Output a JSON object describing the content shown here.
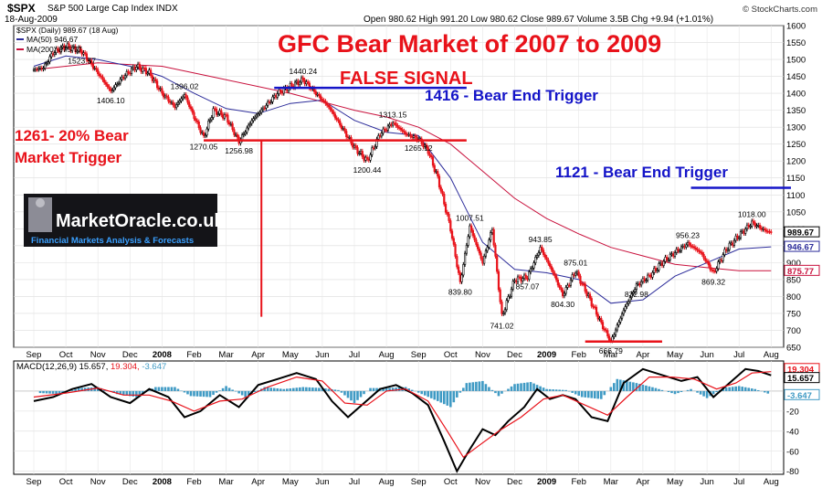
{
  "header": {
    "symbol": "$SPX",
    "name": "S&P 500 Large Cap Index INDX",
    "date": "18-Aug-2009",
    "ohlc": "Open 980.62  High 991.20  Low 980.62  Close 989.67  Volume 3.5B  Chg +9.94 (+1.01%)",
    "watermark": "© StockCharts.com"
  },
  "legend": {
    "main": "$SPX (Daily) 989.67 (18 Aug)",
    "ma50": "MA(50) 946.67",
    "ma200": "MA(200) 875.77",
    "macd_label": "MACD(12,26,9)",
    "macd_v1": "15.657,",
    "macd_v2": "19.304,",
    "macd_v3": "-3.647"
  },
  "annotations": {
    "title": "GFC  Bear Market of 2007 to 2009",
    "false_signal": "FALSE SIGNAL",
    "trigger_1416": "1416 - Bear End Trigger",
    "trigger_1121": "1121 - Bear End Trigger",
    "trigger_1261_a": "1261- 20% Bear",
    "trigger_1261_b": "Market Trigger"
  },
  "logo": {
    "name": "MarketOracle.co.uk",
    "tagline": "Financial Markets Analysis & Forecasts"
  },
  "colors": {
    "price": "#000000",
    "down": "#e8121a",
    "ma50": "#2c2c9a",
    "ma200": "#c8103c",
    "signal": "#e8121a",
    "hist": "#3f9ac4",
    "annotation_red": "#e8121a",
    "annotation_blue": "#1414c8"
  },
  "chart_data": [
    {
      "type": "line",
      "title": "$SPX (Daily)",
      "ylim": [
        650,
        1600
      ],
      "y_ticks": [
        650,
        700,
        750,
        800,
        850,
        900,
        950,
        1000,
        1050,
        1100,
        1150,
        1200,
        1250,
        1300,
        1350,
        1400,
        1450,
        1500,
        1550,
        1600
      ],
      "x_ticks": [
        "Sep",
        "Oct",
        "Nov",
        "Dec",
        "2008",
        "Feb",
        "Mar",
        "Apr",
        "May",
        "Jun",
        "Jul",
        "Aug",
        "Sep",
        "Oct",
        "Nov",
        "Dec",
        "2009",
        "Feb",
        "Mar",
        "Apr",
        "May",
        "Jun",
        "Jul",
        "Aug"
      ],
      "price_path": [
        [
          0,
          1470
        ],
        [
          0.3,
          1475
        ],
        [
          0.6,
          1520
        ],
        [
          1.0,
          1539
        ],
        [
          1.5,
          1523.57
        ],
        [
          2.0,
          1460
        ],
        [
          2.4,
          1406.1
        ],
        [
          2.8,
          1450
        ],
        [
          3.2,
          1480
        ],
        [
          3.6,
          1460
        ],
        [
          4.0,
          1400
        ],
        [
          4.4,
          1360
        ],
        [
          4.7,
          1396.02
        ],
        [
          5.0,
          1330
        ],
        [
          5.3,
          1270.05
        ],
        [
          5.6,
          1350
        ],
        [
          6.0,
          1330
        ],
        [
          6.4,
          1256.98
        ],
        [
          6.8,
          1320
        ],
        [
          7.2,
          1360
        ],
        [
          7.6,
          1400
        ],
        [
          8.0,
          1420
        ],
        [
          8.4,
          1440.24
        ],
        [
          8.8,
          1400
        ],
        [
          9.2,
          1360
        ],
        [
          9.6,
          1300
        ],
        [
          10.0,
          1240
        ],
        [
          10.4,
          1200.44
        ],
        [
          10.8,
          1280
        ],
        [
          11.2,
          1313.15
        ],
        [
          11.6,
          1280
        ],
        [
          12.0,
          1265.12
        ],
        [
          12.3,
          1230
        ],
        [
          12.6,
          1150
        ],
        [
          13.0,
          1000
        ],
        [
          13.3,
          839.8
        ],
        [
          13.6,
          1007.51
        ],
        [
          14.0,
          900
        ],
        [
          14.3,
          1000
        ],
        [
          14.6,
          741.02
        ],
        [
          15.0,
          850
        ],
        [
          15.4,
          857.07
        ],
        [
          15.8,
          943.85
        ],
        [
          16.2,
          870
        ],
        [
          16.5,
          804.3
        ],
        [
          16.9,
          875.01
        ],
        [
          17.3,
          800
        ],
        [
          17.7,
          720
        ],
        [
          18.0,
          666.79
        ],
        [
          18.4,
          760
        ],
        [
          18.8,
          832.98
        ],
        [
          19.2,
          860
        ],
        [
          19.6,
          900
        ],
        [
          20.0,
          930
        ],
        [
          20.4,
          956.23
        ],
        [
          20.8,
          930
        ],
        [
          21.2,
          869.32
        ],
        [
          21.6,
          940
        ],
        [
          22.0,
          980
        ],
        [
          22.4,
          1018.0
        ],
        [
          22.8,
          995
        ],
        [
          23.0,
          989.67
        ]
      ],
      "series": [
        {
          "name": "MA(50)",
          "values": [
            [
              0,
              1480
            ],
            [
              1,
              1510
            ],
            [
              2,
              1500
            ],
            [
              3,
              1480
            ],
            [
              4,
              1450
            ],
            [
              5,
              1400
            ],
            [
              6,
              1355
            ],
            [
              7,
              1340
            ],
            [
              8,
              1370
            ],
            [
              9,
              1380
            ],
            [
              10,
              1320
            ],
            [
              11,
              1285
            ],
            [
              12,
              1275
            ],
            [
              13,
              1150
            ],
            [
              14,
              960
            ],
            [
              15,
              880
            ],
            [
              16,
              870
            ],
            [
              17,
              850
            ],
            [
              18,
              780
            ],
            [
              19,
              790
            ],
            [
              20,
              860
            ],
            [
              21,
              900
            ],
            [
              22,
              940
            ],
            [
              23,
              946.67
            ]
          ]
        },
        {
          "name": "MA(200)",
          "values": [
            [
              0,
              1470
            ],
            [
              2,
              1490
            ],
            [
              4,
              1480
            ],
            [
              6,
              1440
            ],
            [
              8,
              1400
            ],
            [
              10,
              1350
            ],
            [
              11,
              1330
            ],
            [
              12,
              1300
            ],
            [
              13,
              1250
            ],
            [
              14,
              1170
            ],
            [
              15,
              1090
            ],
            [
              16,
              1030
            ],
            [
              17,
              985
            ],
            [
              18,
              945
            ],
            [
              19,
              920
            ],
            [
              20,
              895
            ],
            [
              21,
              885
            ],
            [
              22,
              876
            ],
            [
              23,
              875.77
            ]
          ]
        }
      ],
      "price_labels": [
        {
          "text": "1523.57",
          "x": 1.5,
          "y": 1523.57
        },
        {
          "text": "1406.10",
          "x": 2.4,
          "y": 1406.1
        },
        {
          "text": "1396.02",
          "x": 4.7,
          "y": 1396.02
        },
        {
          "text": "1270.05",
          "x": 5.3,
          "y": 1270.05
        },
        {
          "text": "1256.98",
          "x": 6.4,
          "y": 1256.98
        },
        {
          "text": "1440.24",
          "x": 8.4,
          "y": 1440.24
        },
        {
          "text": "1200.44",
          "x": 10.4,
          "y": 1200.44
        },
        {
          "text": "1313.15",
          "x": 11.2,
          "y": 1313.15
        },
        {
          "text": "1265.12",
          "x": 12.0,
          "y": 1265.12
        },
        {
          "text": "839.80",
          "x": 13.3,
          "y": 839.8
        },
        {
          "text": "1007.51",
          "x": 13.6,
          "y": 1007.51
        },
        {
          "text": "741.02",
          "x": 14.6,
          "y": 741.02
        },
        {
          "text": "857.07",
          "x": 15.4,
          "y": 857.07
        },
        {
          "text": "943.85",
          "x": 15.8,
          "y": 943.85
        },
        {
          "text": "804.30",
          "x": 16.5,
          "y": 804.3
        },
        {
          "text": "875.01",
          "x": 16.9,
          "y": 875.01
        },
        {
          "text": "666.79",
          "x": 18.0,
          "y": 666.79
        },
        {
          "text": "832.98",
          "x": 18.8,
          "y": 832.98
        },
        {
          "text": "956.23",
          "x": 20.4,
          "y": 956.23
        },
        {
          "text": "869.32",
          "x": 21.2,
          "y": 869.32
        },
        {
          "text": "1018.00",
          "x": 22.4,
          "y": 1018.0
        }
      ],
      "right_labels": [
        "989.67",
        "946.67",
        "875.77"
      ],
      "levels": [
        {
          "value": 1416,
          "from": 7.5,
          "to": 13.5
        },
        {
          "value": 1261,
          "from": 5.3,
          "to": 13.5
        },
        {
          "value": 1121,
          "from": 20.5,
          "to": 24.5
        },
        {
          "value": 666.79,
          "from": 17.2,
          "to": 19.6
        }
      ],
      "vline": {
        "x": 7.1,
        "from": 1261,
        "to": 740
      },
      "grid": true
    },
    {
      "type": "line",
      "title": "MACD(12,26,9)",
      "ylim": [
        -83,
        30
      ],
      "y_ticks": [
        -80,
        -60,
        -40,
        -20
      ],
      "right_labels": [
        "19.304",
        "15.657",
        "-3.647"
      ],
      "series": [
        {
          "name": "MACD",
          "values": [
            [
              0,
              -10
            ],
            [
              0.6,
              -6
            ],
            [
              1.2,
              2
            ],
            [
              1.8,
              7
            ],
            [
              2.4,
              -6
            ],
            [
              3.0,
              -12
            ],
            [
              3.6,
              2
            ],
            [
              4.2,
              -6
            ],
            [
              4.7,
              -26
            ],
            [
              5.2,
              -20
            ],
            [
              5.8,
              -4
            ],
            [
              6.4,
              -16
            ],
            [
              7.0,
              6
            ],
            [
              7.6,
              12
            ],
            [
              8.2,
              18
            ],
            [
              8.8,
              12
            ],
            [
              9.3,
              -10
            ],
            [
              9.8,
              -26
            ],
            [
              10.3,
              -12
            ],
            [
              10.8,
              2
            ],
            [
              11.3,
              6
            ],
            [
              11.8,
              -2
            ],
            [
              12.3,
              -14
            ],
            [
              12.8,
              -50
            ],
            [
              13.2,
              -80
            ],
            [
              13.6,
              -58
            ],
            [
              14.0,
              -38
            ],
            [
              14.4,
              -44
            ],
            [
              14.8,
              -30
            ],
            [
              15.3,
              -16
            ],
            [
              15.7,
              2
            ],
            [
              16.1,
              -8
            ],
            [
              16.5,
              -4
            ],
            [
              16.9,
              -8
            ],
            [
              17.4,
              -26
            ],
            [
              17.9,
              -30
            ],
            [
              18.4,
              8
            ],
            [
              19.0,
              22
            ],
            [
              19.6,
              16
            ],
            [
              20.2,
              10
            ],
            [
              20.7,
              14
            ],
            [
              21.2,
              -6
            ],
            [
              21.7,
              8
            ],
            [
              22.2,
              22
            ],
            [
              22.6,
              20
            ],
            [
              23.0,
              15.657
            ]
          ]
        },
        {
          "name": "Signal",
          "values": [
            [
              0,
              -6
            ],
            [
              1,
              -2
            ],
            [
              2,
              3
            ],
            [
              2.8,
              -4
            ],
            [
              3.6,
              -4
            ],
            [
              4.3,
              -10
            ],
            [
              5.0,
              -20
            ],
            [
              5.8,
              -10
            ],
            [
              6.5,
              -8
            ],
            [
              7.3,
              4
            ],
            [
              8.2,
              14
            ],
            [
              9.0,
              10
            ],
            [
              9.7,
              -12
            ],
            [
              10.4,
              -14
            ],
            [
              11.0,
              0
            ],
            [
              11.6,
              2
            ],
            [
              12.3,
              -10
            ],
            [
              12.9,
              -40
            ],
            [
              13.4,
              -66
            ],
            [
              13.9,
              -54
            ],
            [
              14.5,
              -40
            ],
            [
              15.2,
              -26
            ],
            [
              15.9,
              -8
            ],
            [
              16.5,
              -4
            ],
            [
              17.2,
              -14
            ],
            [
              17.9,
              -24
            ],
            [
              18.5,
              -6
            ],
            [
              19.2,
              14
            ],
            [
              19.9,
              14
            ],
            [
              20.6,
              12
            ],
            [
              21.3,
              2
            ],
            [
              21.9,
              8
            ],
            [
              22.4,
              18
            ],
            [
              23.0,
              19.304
            ]
          ]
        }
      ],
      "histogram": [
        [
          0.2,
          -2
        ],
        [
          0.8,
          -3
        ],
        [
          1.4,
          3
        ],
        [
          2.0,
          4
        ],
        [
          2.6,
          -3
        ],
        [
          3.2,
          -6
        ],
        [
          3.8,
          4
        ],
        [
          4.4,
          4
        ],
        [
          4.9,
          -5
        ],
        [
          5.5,
          -6
        ],
        [
          6.0,
          5
        ],
        [
          6.6,
          -6
        ],
        [
          7.2,
          4
        ],
        [
          7.8,
          2
        ],
        [
          8.4,
          4
        ],
        [
          9.0,
          3
        ],
        [
          9.5,
          1
        ],
        [
          10.0,
          -12
        ],
        [
          10.5,
          3
        ],
        [
          11.0,
          3
        ],
        [
          11.6,
          4
        ],
        [
          12.1,
          -3
        ],
        [
          12.6,
          -10
        ],
        [
          13.0,
          -16
        ],
        [
          13.5,
          8
        ],
        [
          14.0,
          10
        ],
        [
          14.5,
          -5
        ],
        [
          15.0,
          7
        ],
        [
          15.5,
          9
        ],
        [
          16.0,
          2
        ],
        [
          16.6,
          1
        ],
        [
          17.1,
          -6
        ],
        [
          17.7,
          -8
        ],
        [
          18.2,
          12
        ],
        [
          18.8,
          8
        ],
        [
          19.4,
          3
        ],
        [
          20.0,
          -3
        ],
        [
          20.5,
          2
        ],
        [
          21.0,
          -7
        ],
        [
          21.5,
          3
        ],
        [
          22.0,
          5
        ],
        [
          22.5,
          2
        ],
        [
          23.0,
          -3.647
        ]
      ],
      "grid": true
    }
  ]
}
